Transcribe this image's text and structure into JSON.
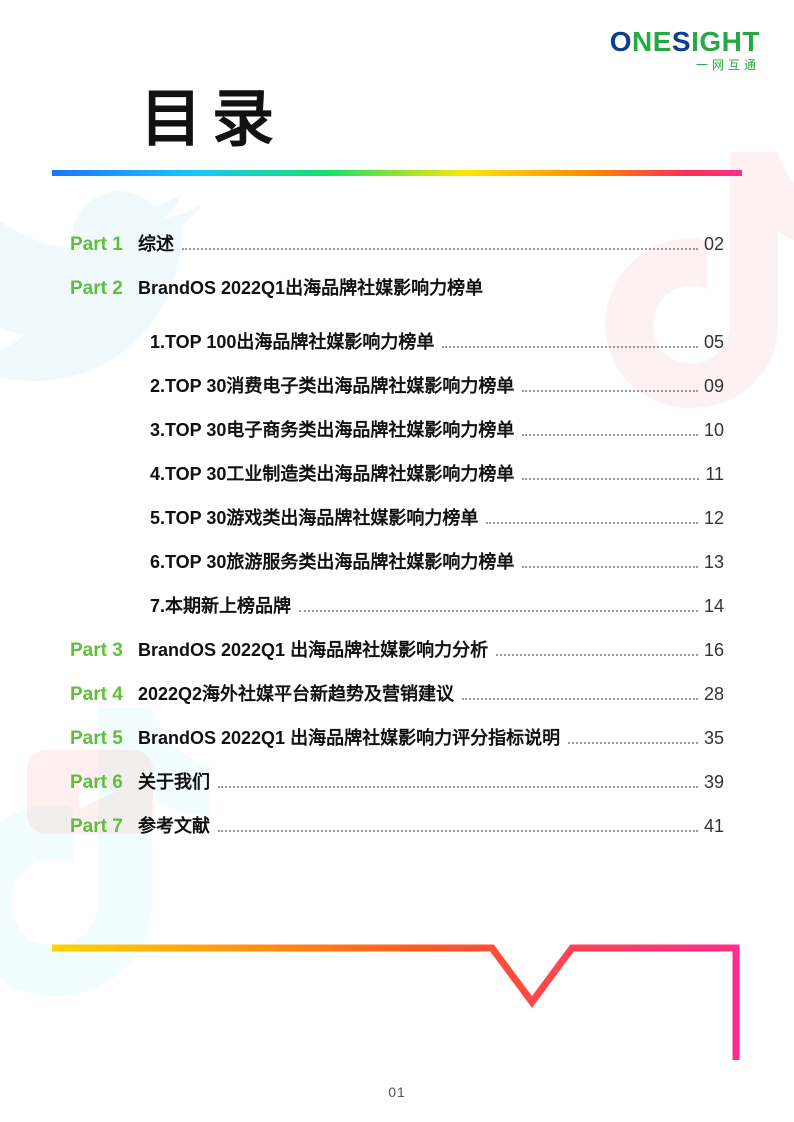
{
  "logo": {
    "text_a": "O",
    "text_b": "NE",
    "text_c": "S",
    "text_d": "IGHT",
    "sub": "一网互通"
  },
  "title": "目录",
  "page_number": "01",
  "colors": {
    "part_green": "#5fbf3b",
    "logo_blue": "#0b3d91",
    "logo_green": "#28a745",
    "rainbow": [
      "#1e73ff",
      "#17c5ff",
      "#17e06a",
      "#ffe600",
      "#ff8a00",
      "#ff2d55",
      "#ff2d8c"
    ],
    "bubble": [
      "#ffd400",
      "#ff2d8c"
    ]
  },
  "toc": [
    {
      "part": "Part 1",
      "label": "综述",
      "page": "02"
    },
    {
      "part": "Part 2",
      "label": "BrandOS 2022Q1出海品牌社媒影响力榜单",
      "page": ""
    },
    {
      "sub": true,
      "label": "1.TOP 100出海品牌社媒影响力榜单",
      "page": "05"
    },
    {
      "sub": true,
      "label": "2.TOP 30消费电子类出海品牌社媒影响力榜单",
      "page": "09"
    },
    {
      "sub": true,
      "label": "3.TOP 30电子商务类出海品牌社媒影响力榜单",
      "page": "10"
    },
    {
      "sub": true,
      "label": "4.TOP 30工业制造类出海品牌社媒影响力榜单",
      "page": "11"
    },
    {
      "sub": true,
      "label": "5.TOP 30游戏类出海品牌社媒影响力榜单",
      "page": "12"
    },
    {
      "sub": true,
      "label": "6.TOP 30旅游服务类出海品牌社媒影响力榜单",
      "page": "13"
    },
    {
      "sub": true,
      "label": "7.本期新上榜品牌",
      "page": "14"
    },
    {
      "part": "Part 3",
      "label": "BrandOS 2022Q1 出海品牌社媒影响力分析",
      "page": "16"
    },
    {
      "part": "Part 4",
      "label": "2022Q2海外社媒平台新趋势及营销建议",
      "page": "28"
    },
    {
      "part": "Part 5",
      "label": "BrandOS 2022Q1 出海品牌社媒影响力评分指标说明",
      "page": "35"
    },
    {
      "part": "Part 6",
      "label": "关于我们",
      "page": "39"
    },
    {
      "part": "Part 7",
      "label": "参考文献",
      "page": "41"
    }
  ]
}
